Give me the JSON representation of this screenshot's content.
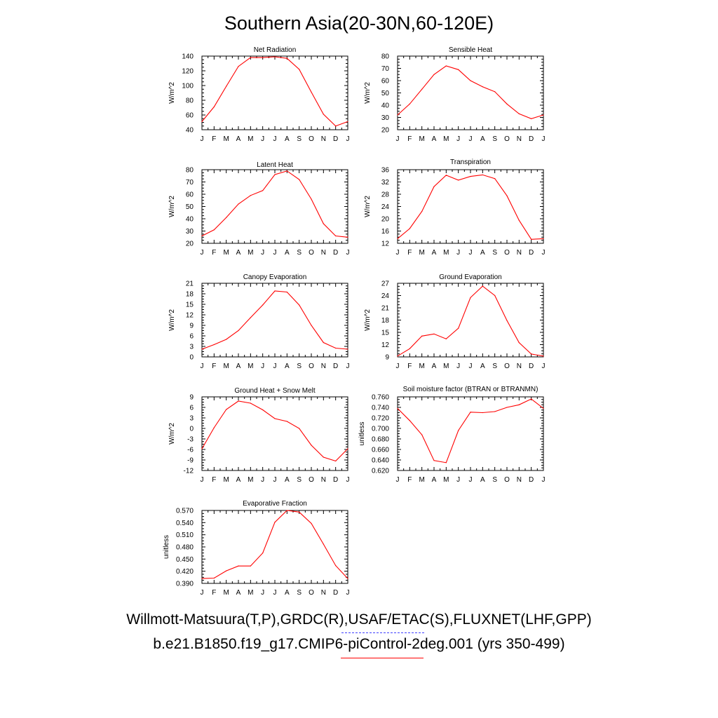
{
  "title": "Southern Asia(20-30N,60-120E)",
  "legend": {
    "observations": "Willmott-Matsuura(T,P),GRDC(R),USAF/ETAC(S),FLUXNET(LHF,GPP)",
    "model": "b.e21.B1850.f19_g17.CMIP6-piControl-2deg.001 (yrs 350-499)",
    "observations_color": "#4040ff",
    "model_color": "#ff0000"
  },
  "chart_data": [
    {
      "type": "line",
      "title": "Net Radiation",
      "ylabel": "W/m^2",
      "categories": [
        "J",
        "F",
        "M",
        "A",
        "M",
        "J",
        "J",
        "A",
        "S",
        "O",
        "N",
        "D",
        "J"
      ],
      "ylim": [
        40,
        140
      ],
      "yticks": [
        "40",
        "60",
        "80",
        "100",
        "120",
        "140"
      ],
      "series": [
        {
          "color": "#ff0000",
          "values": [
            51,
            71,
            99,
            126,
            138,
            138,
            139,
            137,
            122,
            91,
            61,
            45,
            51
          ]
        }
      ]
    },
    {
      "type": "line",
      "title": "Sensible Heat",
      "ylabel": "W/m^2",
      "categories": [
        "J",
        "F",
        "M",
        "A",
        "M",
        "J",
        "J",
        "A",
        "S",
        "O",
        "N",
        "D",
        "J"
      ],
      "ylim": [
        20,
        80
      ],
      "yticks": [
        "20",
        "30",
        "40",
        "50",
        "60",
        "70",
        "80"
      ],
      "series": [
        {
          "color": "#ff0000",
          "values": [
            32,
            41,
            53,
            65,
            72,
            69,
            60,
            55,
            51,
            41,
            33,
            29,
            32
          ]
        }
      ]
    },
    {
      "type": "line",
      "title": "Latent Heat",
      "ylabel": "W/m^2",
      "categories": [
        "J",
        "F",
        "M",
        "A",
        "M",
        "J",
        "J",
        "A",
        "S",
        "O",
        "N",
        "D",
        "J"
      ],
      "ylim": [
        20,
        80
      ],
      "yticks": [
        "20",
        "30",
        "40",
        "50",
        "60",
        "70",
        "80"
      ],
      "series": [
        {
          "color": "#ff0000",
          "values": [
            26,
            31,
            41,
            52,
            59,
            63,
            76,
            79,
            72,
            56,
            36,
            26,
            25
          ]
        }
      ]
    },
    {
      "type": "line",
      "title": "Transpiration",
      "ylabel": "W/m^2",
      "categories": [
        "J",
        "F",
        "M",
        "A",
        "M",
        "J",
        "J",
        "A",
        "S",
        "O",
        "N",
        "D",
        "J"
      ],
      "ylim": [
        12,
        36
      ],
      "yticks": [
        "12",
        "16",
        "20",
        "24",
        "28",
        "32",
        "36"
      ],
      "series": [
        {
          "color": "#ff0000",
          "values": [
            13.5,
            16.8,
            22.4,
            30.5,
            34.2,
            32.6,
            33.8,
            34.3,
            33.1,
            27.5,
            19.5,
            13.3,
            13.5
          ]
        }
      ]
    },
    {
      "type": "line",
      "title": "Canopy Evaporation",
      "ylabel": "W/m^2",
      "categories": [
        "J",
        "F",
        "M",
        "A",
        "M",
        "J",
        "J",
        "A",
        "S",
        "O",
        "N",
        "D",
        "J"
      ],
      "ylim": [
        0,
        21
      ],
      "yticks": [
        "0",
        "3",
        "6",
        "9",
        "12",
        "15",
        "18",
        "21"
      ],
      "series": [
        {
          "color": "#ff0000",
          "values": [
            2.2,
            3.5,
            5.0,
            7.5,
            11.2,
            14.8,
            18.8,
            18.5,
            14.8,
            9.0,
            4.1,
            2.5,
            2.2
          ]
        }
      ]
    },
    {
      "type": "line",
      "title": "Ground Evaporation",
      "ylabel": "W/m^2",
      "categories": [
        "J",
        "F",
        "M",
        "A",
        "M",
        "J",
        "J",
        "A",
        "S",
        "O",
        "N",
        "D",
        "J"
      ],
      "ylim": [
        9,
        27
      ],
      "yticks": [
        "9",
        "12",
        "15",
        "18",
        "21",
        "24",
        "27"
      ],
      "series": [
        {
          "color": "#ff0000",
          "values": [
            9.2,
            11.0,
            14.1,
            14.6,
            13.4,
            16.0,
            23.5,
            26.3,
            24.0,
            17.9,
            12.5,
            9.7,
            9.2
          ]
        }
      ]
    },
    {
      "type": "line",
      "title": "Ground Heat + Snow Melt",
      "ylabel": "W/m^2",
      "categories": [
        "J",
        "F",
        "M",
        "A",
        "M",
        "J",
        "J",
        "A",
        "S",
        "O",
        "N",
        "D",
        "J"
      ],
      "ylim": [
        -12,
        9
      ],
      "yticks": [
        "-12",
        "-9",
        "-6",
        "-3",
        "0",
        "3",
        "6",
        "9"
      ],
      "series": [
        {
          "color": "#ff0000",
          "values": [
            -5.8,
            0.2,
            5.4,
            7.8,
            7.2,
            5.3,
            2.8,
            2.0,
            0.0,
            -4.8,
            -8.2,
            -9.3,
            -5.8
          ]
        }
      ]
    },
    {
      "type": "line",
      "title": "Soil moisture factor (BTRAN or BTRANMN)",
      "ylabel": "unitless",
      "categories": [
        "J",
        "F",
        "M",
        "A",
        "M",
        "J",
        "J",
        "A",
        "S",
        "O",
        "N",
        "D",
        "J"
      ],
      "ylim": [
        0.62,
        0.76
      ],
      "yticks": [
        "0.620",
        "0.640",
        "0.660",
        "0.680",
        "0.700",
        "0.720",
        "0.740",
        "0.760"
      ],
      "series": [
        {
          "color": "#ff0000",
          "values": [
            0.738,
            0.715,
            0.688,
            0.639,
            0.635,
            0.696,
            0.731,
            0.73,
            0.732,
            0.74,
            0.745,
            0.756,
            0.738
          ]
        }
      ]
    },
    {
      "type": "line",
      "title": "Evaporative Fraction",
      "ylabel": "unitless",
      "categories": [
        "J",
        "F",
        "M",
        "A",
        "M",
        "J",
        "J",
        "A",
        "S",
        "O",
        "N",
        "D",
        "J"
      ],
      "ylim": [
        0.39,
        0.57
      ],
      "yticks": [
        "0.390",
        "0.420",
        "0.450",
        "0.480",
        "0.510",
        "0.540",
        "0.570"
      ],
      "series": [
        {
          "color": "#ff0000",
          "values": [
            0.402,
            0.403,
            0.421,
            0.433,
            0.433,
            0.465,
            0.541,
            0.57,
            0.566,
            0.538,
            0.487,
            0.434,
            0.402
          ]
        }
      ]
    }
  ]
}
